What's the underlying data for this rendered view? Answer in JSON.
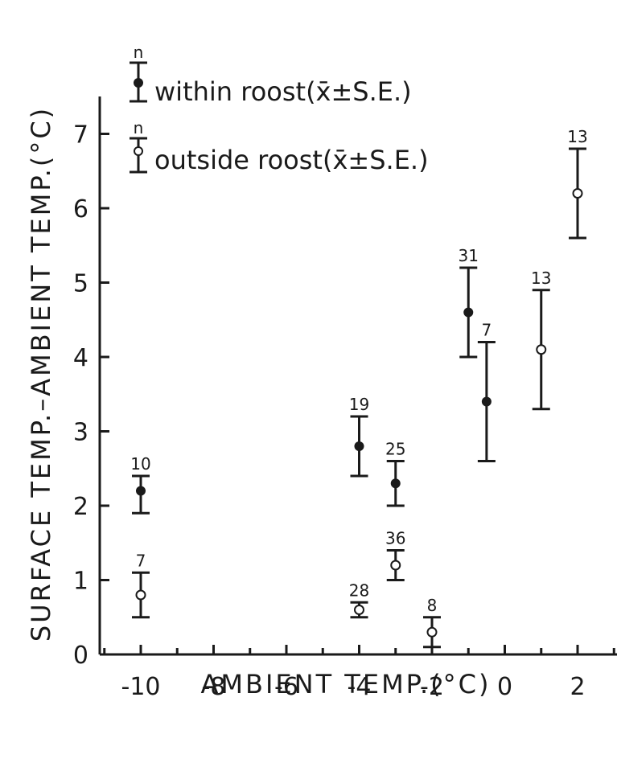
{
  "chart_data": {
    "type": "scatter",
    "xlabel": "AMBIENT TEMP.(°C)",
    "ylabel": "SURFACE TEMP.–AMBIENT TEMP.(°C)",
    "xlim": [
      -11,
      3
    ],
    "ylim": [
      0,
      7.5
    ],
    "x_ticks": [
      -10,
      -8,
      -6,
      -4,
      -2,
      0,
      2
    ],
    "y_ticks": [
      0,
      1,
      2,
      3,
      4,
      5,
      6,
      7
    ],
    "grid": false,
    "legend_position": "top-left",
    "series": [
      {
        "name": "within roost(x̄±S.E.)",
        "marker": "filled-circle",
        "points": [
          {
            "x": -10,
            "y": 2.2,
            "lo": 1.9,
            "hi": 2.4,
            "n": "10"
          },
          {
            "x": -4,
            "y": 2.8,
            "lo": 2.4,
            "hi": 3.2,
            "n": "19"
          },
          {
            "x": -3,
            "y": 2.3,
            "lo": 2.0,
            "hi": 2.6,
            "n": "25"
          },
          {
            "x": -1,
            "y": 4.6,
            "lo": 4.0,
            "hi": 5.2,
            "n": "31"
          },
          {
            "x": -0.5,
            "y": 3.4,
            "lo": 2.6,
            "hi": 4.2,
            "n": "7"
          }
        ]
      },
      {
        "name": "outside roost(x̄±S.E.)",
        "marker": "open-circle",
        "points": [
          {
            "x": -10,
            "y": 0.8,
            "lo": 0.5,
            "hi": 1.1,
            "n": "7"
          },
          {
            "x": -4,
            "y": 0.6,
            "lo": 0.5,
            "hi": 0.7,
            "n": "28"
          },
          {
            "x": -3,
            "y": 1.2,
            "lo": 1.0,
            "hi": 1.4,
            "n": "36"
          },
          {
            "x": -2,
            "y": 0.3,
            "lo": 0.1,
            "hi": 0.5,
            "n": "8"
          },
          {
            "x": 1,
            "y": 4.1,
            "lo": 3.3,
            "hi": 4.9,
            "n": "13"
          },
          {
            "x": 2,
            "y": 6.2,
            "lo": 5.6,
            "hi": 6.8,
            "n": "13"
          }
        ]
      }
    ],
    "legend": {
      "n_symbol": "n",
      "within_label": "within roost(x̄±S.E.)",
      "outside_label": "outside roost(x̄±S.E.)"
    }
  }
}
